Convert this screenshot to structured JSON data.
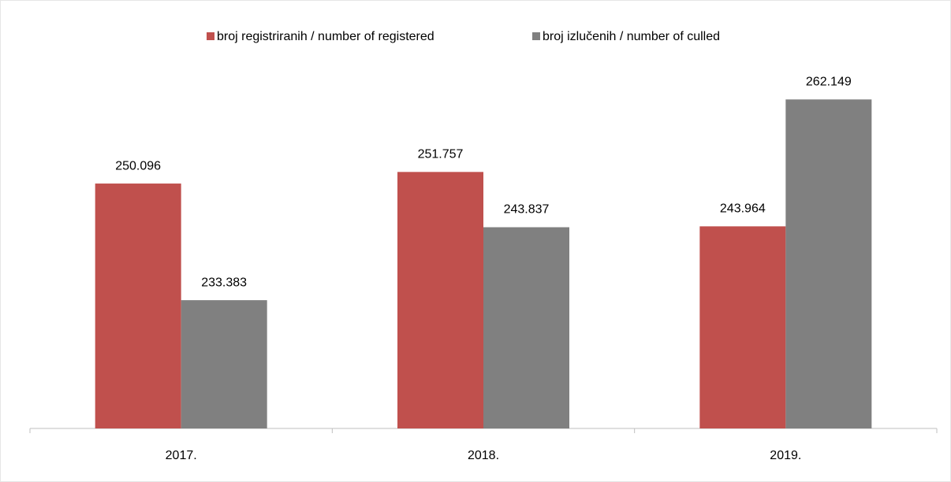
{
  "chart_data": {
    "type": "bar",
    "categories": [
      "2017.",
      "2018.",
      "2019."
    ],
    "series": [
      {
        "name": "broj registriranih / number of registered",
        "color": "#c0504d",
        "values": [
          250096,
          251757,
          243964
        ],
        "value_labels": [
          "250.096",
          "251.757",
          "243.964"
        ]
      },
      {
        "name": "broj izlučenih / number of culled",
        "color": "#808080",
        "values": [
          233383,
          243837,
          262149
        ],
        "value_labels": [
          "233.383",
          "243.837",
          "262.149"
        ]
      }
    ],
    "ylim": [
      215000,
      265000
    ],
    "legend": "top"
  }
}
